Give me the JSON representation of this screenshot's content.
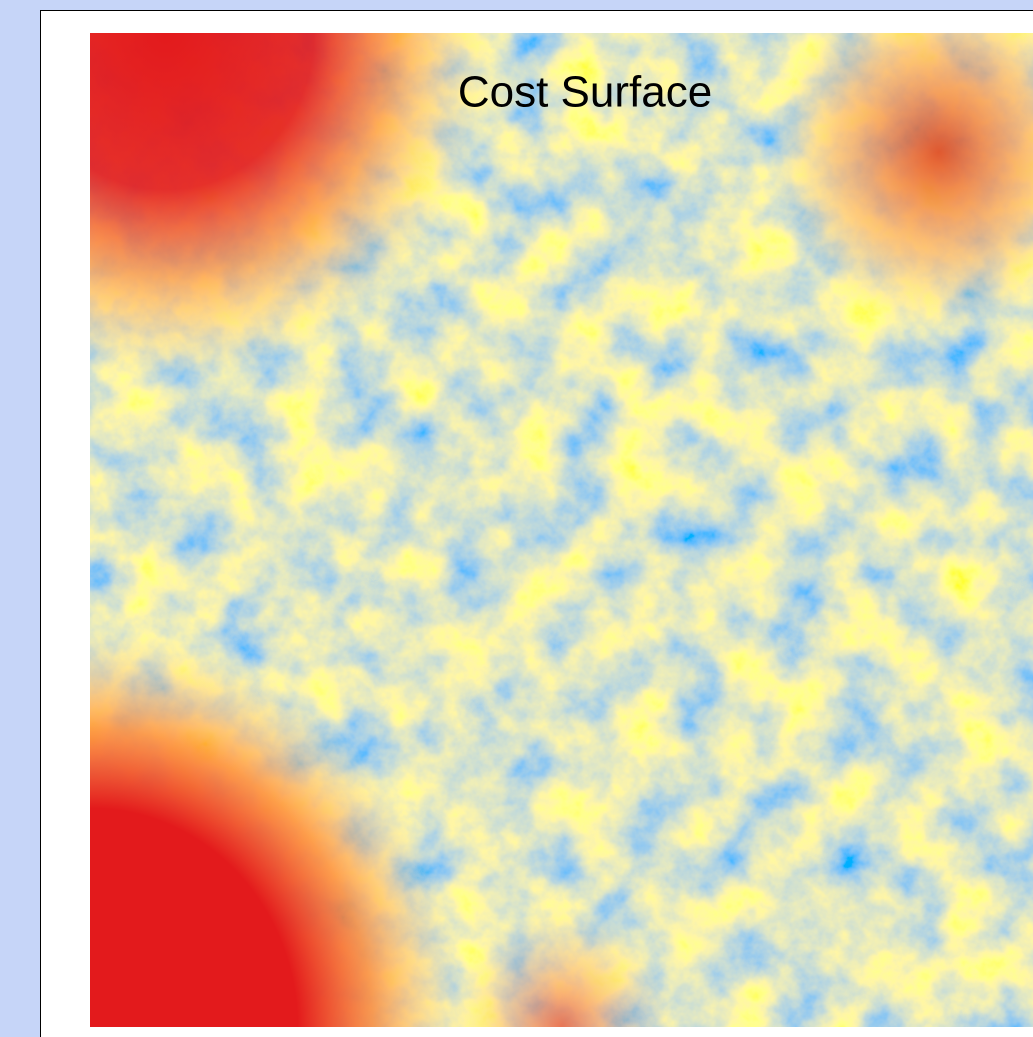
{
  "title": "Cost Surface"
}
